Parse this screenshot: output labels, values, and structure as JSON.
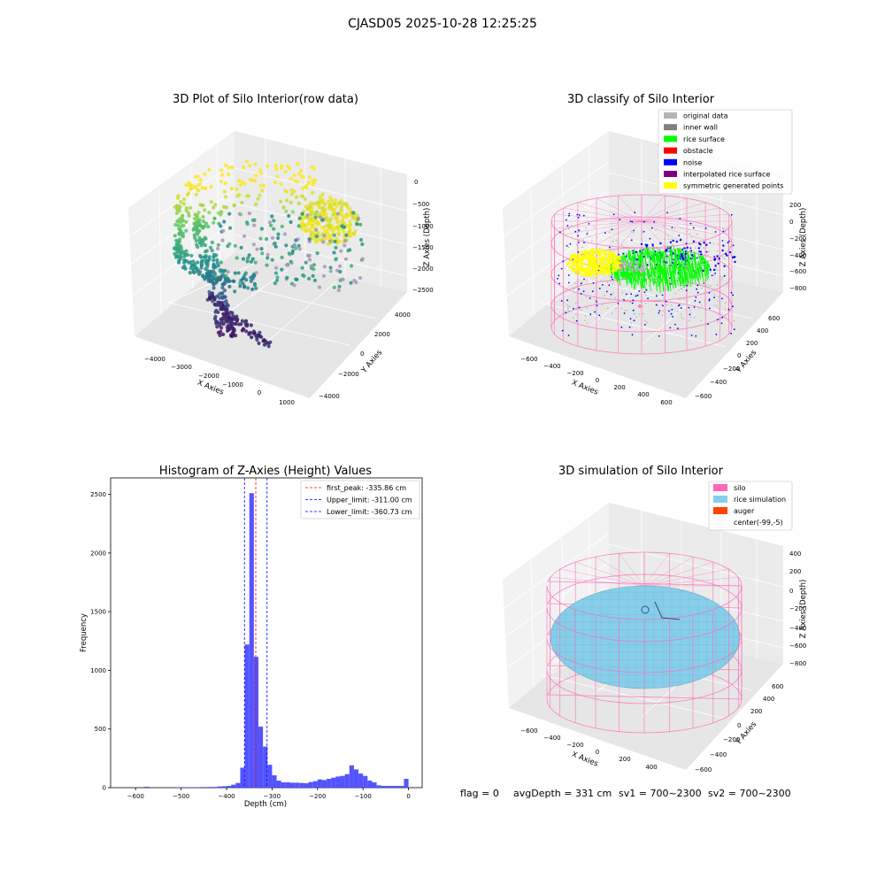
{
  "suptitle": "CJASD05 2025-10-28 12:25:25",
  "status_line": {
    "flag": "flag = 0",
    "avg_depth": "avgDepth = 331 cm",
    "sv1": "sv1 = 700~2300",
    "sv2": "sv2 = 700~2300"
  },
  "colors": {
    "original_data": "#b4b4b4",
    "inner_wall": "#808080",
    "rice_surface": "#00ff00",
    "obstacle": "#ff0000",
    "noise": "#0000ff",
    "interpolated_rice_surface": "#800080",
    "symmetric_generated_points": "#ffff00",
    "silo": "#ff69b4",
    "rice_simulation": "#87ceeb",
    "auger": "#ff4500",
    "hist_bar": "#4b4bff",
    "peak_line": "#ff0000",
    "limit_line": "#0000ff"
  },
  "chart_data": [
    {
      "type": "scatter3d",
      "title": "3D Plot of Silo Interior(row data)",
      "xlabel": "X Axies",
      "ylabel": "Y Axies",
      "zlabel": "Z Axies (Depth)",
      "x_ticks": [
        "−4000",
        "−3000",
        "−2000",
        "−1000",
        "0",
        "1000"
      ],
      "y_ticks": [
        "−4000",
        "−2000",
        "0",
        "2000",
        "4000"
      ],
      "z_ticks": [
        "0",
        "−500",
        "−1000",
        "−1500",
        "−2000",
        "−2500"
      ],
      "colormap": "viridis"
    },
    {
      "type": "scatter3d",
      "title": "3D classify of Silo Interior",
      "xlabel": "X Axies",
      "ylabel": "Y Axies",
      "zlabel": "Z Axies (Depth)",
      "x_ticks": [
        "−600",
        "−400",
        "−200",
        "0",
        "200",
        "400",
        "600"
      ],
      "y_ticks": [
        "−600",
        "−400",
        "−200",
        "0",
        "200",
        "400",
        "600"
      ],
      "z_ticks": [
        "200",
        "0",
        "−200",
        "−400",
        "−600",
        "−800"
      ],
      "legend_position": "top-right",
      "legend": [
        {
          "label": "original data",
          "color_key": "original_data"
        },
        {
          "label": "inner wall",
          "color_key": "inner_wall"
        },
        {
          "label": "rice surface",
          "color_key": "rice_surface"
        },
        {
          "label": "obstacle",
          "color_key": "obstacle"
        },
        {
          "label": "noise",
          "color_key": "noise"
        },
        {
          "label": "interpolated rice surface",
          "color_key": "interpolated_rice_surface"
        },
        {
          "label": "symmetric generated points",
          "color_key": "symmetric_generated_points"
        }
      ]
    },
    {
      "type": "bar",
      "title": "Histogram of Z-Axies (Height) Values",
      "xlabel": "Depth (cm)",
      "ylabel": "Frequency",
      "xlim": [
        -655,
        30
      ],
      "ylim": [
        0,
        2640
      ],
      "x_ticks": [
        -600,
        -500,
        -400,
        -300,
        -200,
        -100,
        0
      ],
      "y_ticks": [
        0,
        500,
        1000,
        1500,
        2000,
        2500
      ],
      "bin_width": 10,
      "bins": [
        {
          "x": -575,
          "count": 8
        },
        {
          "x": -505,
          "count": 3
        },
        {
          "x": -495,
          "count": 4
        },
        {
          "x": -485,
          "count": 4
        },
        {
          "x": -475,
          "count": 4
        },
        {
          "x": -465,
          "count": 4
        },
        {
          "x": -455,
          "count": 5
        },
        {
          "x": -445,
          "count": 5
        },
        {
          "x": -435,
          "count": 6
        },
        {
          "x": -425,
          "count": 6
        },
        {
          "x": -415,
          "count": 10
        },
        {
          "x": -405,
          "count": 12
        },
        {
          "x": -395,
          "count": 15
        },
        {
          "x": -385,
          "count": 25
        },
        {
          "x": -375,
          "count": 40
        },
        {
          "x": -365,
          "count": 170
        },
        {
          "x": -355,
          "count": 1220
        },
        {
          "x": -345,
          "count": 2510
        },
        {
          "x": -335,
          "count": 1115
        },
        {
          "x": -325,
          "count": 520
        },
        {
          "x": -315,
          "count": 350
        },
        {
          "x": -305,
          "count": 195
        },
        {
          "x": -295,
          "count": 105
        },
        {
          "x": -285,
          "count": 60
        },
        {
          "x": -275,
          "count": 45
        },
        {
          "x": -265,
          "count": 45
        },
        {
          "x": -255,
          "count": 42
        },
        {
          "x": -245,
          "count": 42
        },
        {
          "x": -235,
          "count": 40
        },
        {
          "x": -225,
          "count": 38
        },
        {
          "x": -215,
          "count": 48
        },
        {
          "x": -205,
          "count": 55
        },
        {
          "x": -195,
          "count": 70
        },
        {
          "x": -185,
          "count": 65
        },
        {
          "x": -175,
          "count": 75
        },
        {
          "x": -165,
          "count": 85
        },
        {
          "x": -155,
          "count": 95
        },
        {
          "x": -145,
          "count": 100
        },
        {
          "x": -135,
          "count": 115
        },
        {
          "x": -125,
          "count": 190
        },
        {
          "x": -115,
          "count": 155
        },
        {
          "x": -105,
          "count": 120
        },
        {
          "x": -95,
          "count": 100
        },
        {
          "x": -85,
          "count": 60
        },
        {
          "x": -75,
          "count": 45
        },
        {
          "x": -65,
          "count": 20
        },
        {
          "x": -55,
          "count": 15
        },
        {
          "x": -45,
          "count": 15
        },
        {
          "x": -35,
          "count": 15
        },
        {
          "x": -25,
          "count": 15
        },
        {
          "x": -15,
          "count": 15
        },
        {
          "x": -5,
          "count": 75
        }
      ],
      "reference_lines": [
        {
          "label": "first_peak: -335.86 cm",
          "x": -335.86,
          "color_key": "peak_line"
        },
        {
          "label": "Upper_limit: -311.00 cm",
          "x": -311.0,
          "color_key": "limit_line"
        },
        {
          "label": "Lower_limit: -360.73 cm",
          "x": -360.73,
          "color_key": "limit_line"
        }
      ],
      "legend_position": "top-right"
    },
    {
      "type": "surface3d",
      "title": "3D simulation of Silo Interior",
      "xlabel": "X Axies",
      "ylabel": "Y Axies",
      "zlabel": "Z Axies (Depth)",
      "x_ticks": [
        "−600",
        "−400",
        "−200",
        "0",
        "200",
        "400"
      ],
      "y_ticks": [
        "−600",
        "−400",
        "−200",
        "0",
        "200",
        "400",
        "600"
      ],
      "z_ticks": [
        "400",
        "200",
        "0",
        "−200",
        "−400",
        "−600",
        "−800"
      ],
      "legend_position": "top-right",
      "legend": [
        {
          "label": "silo",
          "color_key": "silo"
        },
        {
          "label": "rice simulation",
          "color_key": "rice_simulation"
        },
        {
          "label": "auger",
          "color_key": "auger"
        },
        {
          "label": "center(-99,-5)",
          "color_key": ""
        }
      ]
    }
  ]
}
